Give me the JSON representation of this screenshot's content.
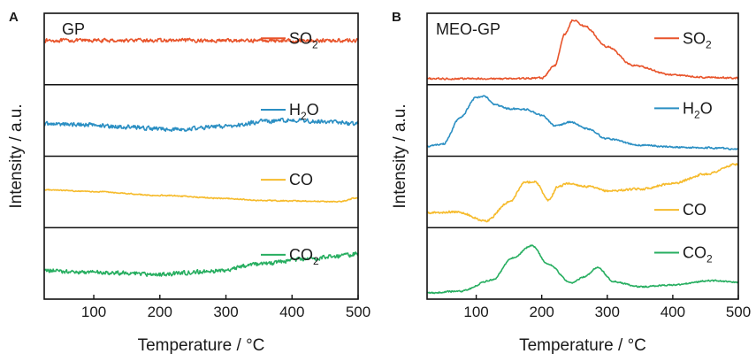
{
  "colors": {
    "SO2": "#e8542b",
    "H2O": "#2b8fc3",
    "CO": "#f6bb2c",
    "CO2": "#27ae60",
    "axis": "#111111"
  },
  "chart_data": [
    {
      "type": "line",
      "panel_letter": "A",
      "sample_label": "GP",
      "xlabel": "Temperature  / °C",
      "ylabel": "Intensity / a.u.",
      "xlim": [
        25,
        500
      ],
      "xticks": [
        "100",
        "200",
        "300",
        "400",
        "500"
      ],
      "stacked_panels": true,
      "series": [
        {
          "name": "SO",
          "sub": "2",
          "color_key": "SO2",
          "noise": 0.025,
          "x": [
            25,
            100,
            200,
            300,
            400,
            500
          ],
          "y": [
            0.65,
            0.65,
            0.65,
            0.65,
            0.65,
            0.65
          ]
        },
        {
          "name": "H",
          "sub": "2",
          "tail": "O",
          "color_key": "H2O",
          "noise": 0.03,
          "x": [
            25,
            80,
            150,
            220,
            300,
            360,
            400,
            450,
            500
          ],
          "y": [
            0.46,
            0.45,
            0.41,
            0.37,
            0.42,
            0.5,
            0.52,
            0.5,
            0.46
          ]
        },
        {
          "name": "CO",
          "color_key": "CO",
          "noise": 0.008,
          "x": [
            25,
            100,
            200,
            300,
            350,
            400,
            470,
            500
          ],
          "y": [
            0.55,
            0.52,
            0.46,
            0.41,
            0.38,
            0.37,
            0.36,
            0.42
          ]
        },
        {
          "name": "CO",
          "sub": "2",
          "color_key": "CO2",
          "noise": 0.03,
          "x": [
            25,
            100,
            200,
            280,
            350,
            420,
            480,
            500
          ],
          "y": [
            0.4,
            0.37,
            0.34,
            0.39,
            0.5,
            0.58,
            0.64,
            0.67
          ]
        }
      ]
    },
    {
      "type": "line",
      "panel_letter": "B",
      "sample_label": "MEO-GP",
      "xlabel": "Temperature  / °C",
      "ylabel": "Intensity / a.u.",
      "xlim": [
        25,
        500
      ],
      "xticks": [
        "100",
        "200",
        "300",
        "400",
        "500"
      ],
      "stacked_panels": true,
      "series": [
        {
          "name": "SO",
          "sub": "2",
          "color_key": "SO2",
          "noise": 0.012,
          "x": [
            25,
            150,
            200,
            220,
            235,
            248,
            265,
            300,
            340,
            400,
            450,
            500
          ],
          "y": [
            0.04,
            0.04,
            0.05,
            0.25,
            0.75,
            0.98,
            0.88,
            0.55,
            0.25,
            0.1,
            0.06,
            0.05
          ]
        },
        {
          "name": "H",
          "sub": "2",
          "tail": "O",
          "color_key": "H2O",
          "noise": 0.012,
          "x": [
            25,
            50,
            75,
            100,
            112,
            130,
            150,
            175,
            200,
            220,
            245,
            270,
            300,
            350,
            400,
            450,
            500
          ],
          "y": [
            0.1,
            0.14,
            0.55,
            0.88,
            0.9,
            0.76,
            0.7,
            0.69,
            0.6,
            0.43,
            0.49,
            0.38,
            0.22,
            0.12,
            0.09,
            0.08,
            0.06
          ]
        },
        {
          "name": "CO",
          "color_key": "CO",
          "noise": 0.015,
          "x": [
            25,
            70,
            115,
            150,
            175,
            190,
            210,
            225,
            240,
            270,
            300,
            350,
            400,
            450,
            500
          ],
          "y": [
            0.18,
            0.2,
            0.05,
            0.35,
            0.67,
            0.68,
            0.38,
            0.6,
            0.65,
            0.6,
            0.53,
            0.56,
            0.65,
            0.8,
            0.96
          ]
        },
        {
          "name": "CO",
          "sub": "2",
          "color_key": "CO2",
          "noise": 0.01,
          "x": [
            25,
            75,
            125,
            155,
            185,
            210,
            245,
            265,
            285,
            310,
            350,
            400,
            460,
            500
          ],
          "y": [
            0.04,
            0.07,
            0.25,
            0.6,
            0.8,
            0.5,
            0.2,
            0.3,
            0.45,
            0.22,
            0.14,
            0.17,
            0.24,
            0.21
          ]
        }
      ]
    }
  ]
}
